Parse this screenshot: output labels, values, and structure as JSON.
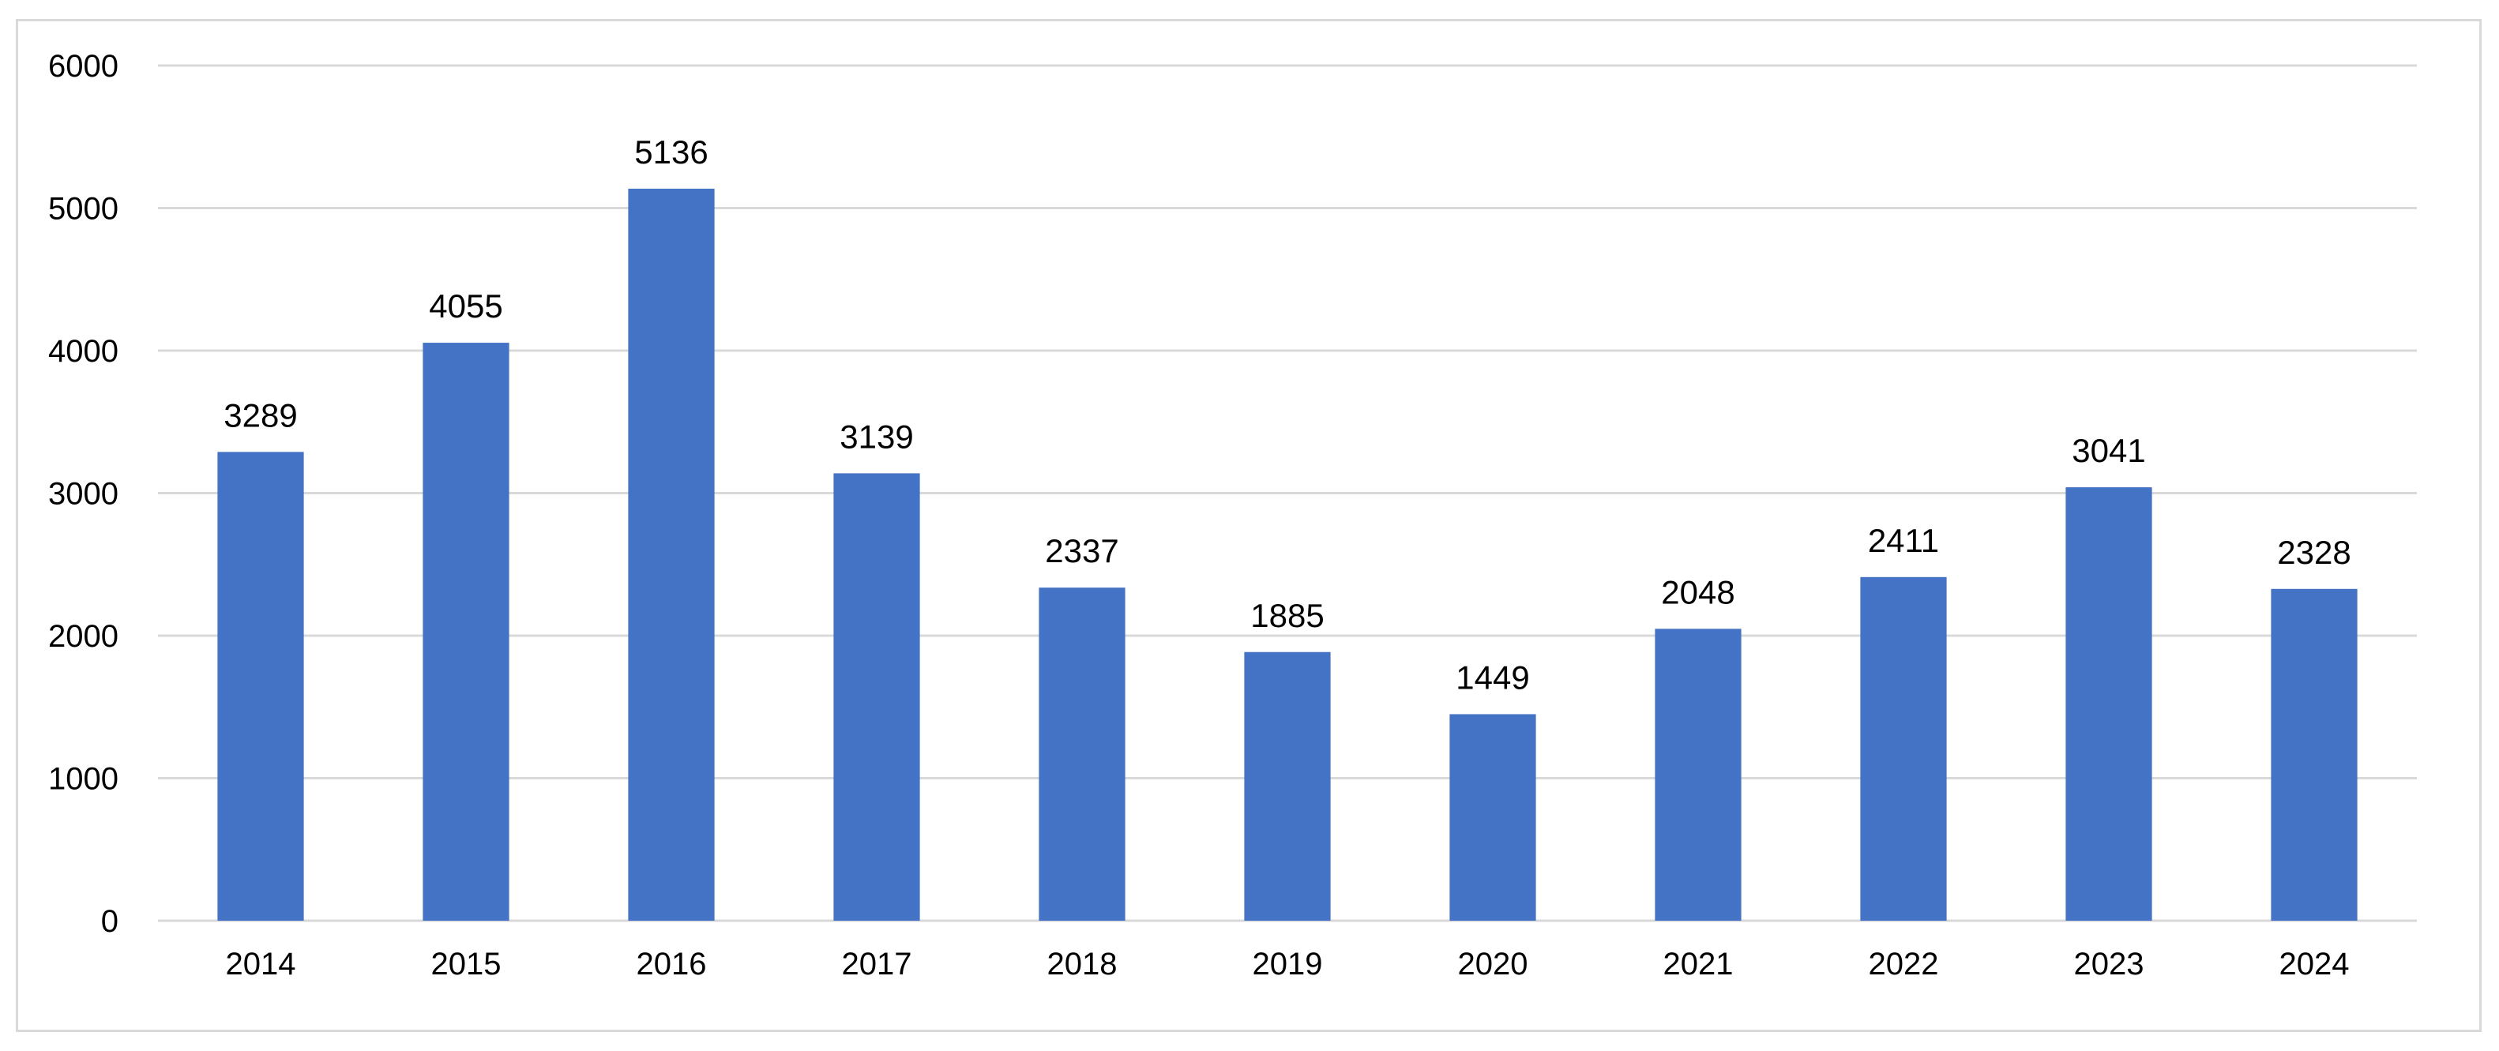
{
  "chart_data": {
    "type": "bar",
    "categories": [
      "2014",
      "2015",
      "2016",
      "2017",
      "2018",
      "2019",
      "2020",
      "2021",
      "2022",
      "2023",
      "2024"
    ],
    "series": [
      {
        "values": [
          3289,
          4055,
          5136,
          3139,
          2337,
          1885,
          1449,
          2048,
          2411,
          3041,
          2328
        ]
      }
    ],
    "data_labels": [
      "3289",
      "4055",
      "5136",
      "3139",
      "2337",
      "1885",
      "1449",
      "2048",
      "2411",
      "3041",
      "2328"
    ],
    "y_ticks": [
      "0",
      "1000",
      "2000",
      "3000",
      "4000",
      "5000",
      "6000"
    ],
    "ylim": [
      0,
      6000
    ],
    "title": "",
    "xlabel": "",
    "ylabel": "",
    "grid": true,
    "legend": "none",
    "bar_color": "#4472c4"
  }
}
